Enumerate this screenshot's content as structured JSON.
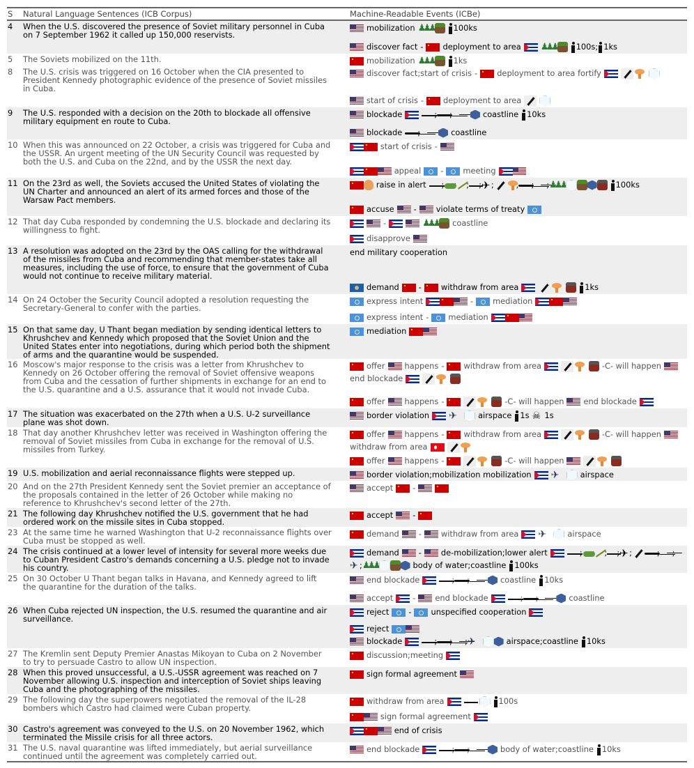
{
  "header": {
    "s": "S",
    "sentences": "Natural Language Sentences (ICB Corpus)",
    "events": "Machine-Readable Events (ICBe)"
  },
  "icon_legend": {
    "@us": "flag-united-states",
    "@su": "flag-soviet-union",
    "@cu": "flag-cuba",
    "@un": "flag-united-nations",
    "@tr": "flag-turkey",
    "@oas": "flag-oas",
    "@warsaw": "warsaw-pact-emblem",
    "@troops": "troops-icon",
    "@land": "land-icon",
    "@water": "water-icon",
    "@air": "airspace-icon",
    "@person": "person-icon",
    "@skull": "skull-icon",
    "@missile": "missile-icon",
    "@nuke": "nuclear-icon",
    "@tnt": "explosive-icon",
    "@ship": "ship-icon",
    "@sub": "submarine-icon",
    "@ship2": "warship-icon",
    "@tank": "tank-icon",
    "@artillery": "artillery-icon",
    "@plane": "plane-icon",
    "@jet": "jet-icon",
    "@recon": "recon-plane-icon"
  },
  "rows": [
    {
      "s": "4",
      "bold": true,
      "text": "When the U.S. discovered the presence of Soviet military personnel in Cuba\non 7 September 1962 it called up 150,000 reservists.",
      "groups": [
        [
          [
            "@us",
            "mobilization",
            "@troops",
            "@land",
            "@person",
            "100ks"
          ]
        ],
        [
          [
            "@us",
            "discover fact",
            "-",
            "@su",
            "deployment to area",
            "@cu",
            "@troops",
            "@land",
            "@person",
            "100s",
            ";",
            "@person",
            "1ks"
          ]
        ]
      ]
    },
    {
      "s": "5",
      "bold": false,
      "text": "The Soviets mobilized on the 11th.",
      "groups": [
        [
          [
            "@su",
            "mobilization",
            "@troops",
            "@land",
            "@person",
            "1ks"
          ]
        ]
      ]
    },
    {
      "s": "8",
      "bold": false,
      "text": "The U.S. crisis was triggered on 16 October when the CIA presented to\nPresident Kennedy photographic evidence of the presence of Soviet missiles\nin Cuba.",
      "groups": [
        [
          [
            "@us",
            "discover fact;start of crisis",
            "-",
            "@su",
            "deployment to area fortify",
            "@cu",
            "@missile",
            ";",
            "@nuke",
            "@air"
          ]
        ],
        [
          [
            "@us",
            "start of crisis",
            "-",
            "@su",
            "deployment to area",
            "@missile",
            "@air"
          ]
        ]
      ]
    },
    {
      "s": "9",
      "bold": true,
      "text": "The U.S. responded with a decision on the 20th to blockade all offensive\nmilitary equipment en route to Cuba.",
      "groups": [
        [
          [
            "@us",
            "blockade",
            "@cu",
            "@ship",
            ";",
            "@sub",
            ";",
            "@ship2",
            "@water",
            "coastline",
            "@person",
            "10ks"
          ]
        ],
        [
          [
            "@us",
            "blockade",
            "@sub",
            ";",
            "@ship2",
            "@water",
            "coastline"
          ]
        ]
      ]
    },
    {
      "s": "10",
      "bold": false,
      "text": "When this was announced on 22 October, a crisis was triggered for Cuba and\nthe USSR. An urgent meeting of the UN Security Council was requested by\nboth the U.S. and Cuba on the 22nd, and by the USSR the next day.",
      "groups": [
        [
          [
            "@cu",
            ";",
            "@su",
            "start of crisis",
            "-",
            "@us"
          ]
        ],
        [
          [
            "@cu",
            ";",
            "@su",
            ";",
            "@us",
            "appeal",
            "@un",
            "-",
            "@un",
            "meeting",
            "@cu",
            ";",
            "@us"
          ]
        ]
      ]
    },
    {
      "s": "11",
      "bold": true,
      "text": "On the 23rd as well, the Soviets accused the United States of violating the\nUN Charter and announced an alert of its armed forces and those of the\nWarsaw Pact members.",
      "groups": [
        [
          [
            "@su",
            ";",
            "@warsaw",
            "raise in alert",
            "@ship",
            ";",
            "@tank",
            ";",
            "@artillery",
            ";",
            "@plane",
            ";",
            "@jet",
            ";",
            "@missile",
            ";",
            "@nuke",
            ";",
            "@sub",
            ";",
            "@ship2",
            ";",
            "@troops",
            "@air",
            ";",
            "@land",
            ";",
            "@water",
            ";",
            "@tnt",
            "@person",
            "100ks"
          ]
        ],
        [
          [
            "@su",
            "accuse",
            "@us",
            "-",
            "@us",
            "violate terms of treaty",
            "@un"
          ]
        ]
      ]
    },
    {
      "s": "12",
      "bold": false,
      "text": "That day Cuba responded by condemning the U.S. blockade and declaring its\nwillingness to fight.",
      "groups": [
        [
          [
            "@cu",
            "@us",
            "-",
            "@cu",
            "@us",
            "@troops",
            "@land",
            "coastline"
          ]
        ],
        [
          [
            "@cu",
            "disapprove",
            "@us"
          ]
        ]
      ]
    },
    {
      "s": "13",
      "bold": true,
      "text": "A resolution was adopted on the 23rd by the OAS calling for the withdrawal\nof the missiles from Cuba and recommending that member-states take all\nmeasures, including the use of force, to ensure that the government of Cuba\nwould not continue to receive military material.",
      "groups": [
        [
          [
            "end military cooperation"
          ]
        ],
        [
          [
            "@oas",
            "demand",
            "@su",
            "-",
            "@su",
            "withdraw from area",
            "@cu",
            "@missile",
            ";",
            "@nuke",
            "@tnt",
            "@person",
            "1ks"
          ]
        ]
      ]
    },
    {
      "s": "14",
      "bold": false,
      "text": "On 24 October the Security Council adopted a resolution requesting the\nSecretary-General to confer with the parties.",
      "groups": [
        [
          [
            "@un",
            "express intent",
            "@cu",
            ";",
            "@su",
            ";",
            "@us",
            "-",
            "@un",
            "mediation",
            "@cu",
            ";",
            "@su",
            ";",
            "@us"
          ]
        ],
        [
          [
            "@un",
            "express intent",
            "-",
            "@un",
            "mediation",
            "@cu",
            ";",
            "@su",
            ";",
            "@us"
          ]
        ]
      ]
    },
    {
      "s": "15",
      "bold": true,
      "text": "On that same day, U Thant began mediation by sending identical letters to\nKhrushchev and Kennedy which proposed that the Soviet Union and the\nUnited States enter into negotiations, during which period both the shipment\nof arms and the quarantine would be suspended.",
      "groups": [
        [
          [
            "@un",
            "mediation",
            "@su",
            ";",
            "@us"
          ]
        ]
      ]
    },
    {
      "s": "16",
      "bold": false,
      "text": "Moscow's major response to the crisis was a letter from Khrushchev to\nKennedy on 26 October offering the removal of Soviet offensive weapons\nfrom Cuba and the cessation of further shipments in exchange for an end to\nthe U.S. quarantine and a U.S. assurance that it would not invade Cuba.",
      "groups": [
        [
          [
            "@su",
            "offer",
            "@us",
            "happens",
            "-",
            "@su",
            "withdraw from area",
            "@cu",
            "@missile",
            ";",
            "@nuke",
            "@tnt",
            "-C- will happen",
            "@us",
            "end blockade",
            "@cu",
            "@missile",
            ";",
            "@nuke",
            "@tnt"
          ]
        ],
        [
          [
            "@su",
            "offer",
            "@us",
            "happens",
            "-",
            "@su",
            "@missile",
            ";",
            "@nuke",
            "@tnt",
            "-C- will happen",
            "@us",
            "end blockade",
            "@cu"
          ]
        ]
      ]
    },
    {
      "s": "17",
      "bold": true,
      "text": "The situation was exacerbated on the 27th when a U.S. U-2 surveillance\nplane was shot down.",
      "groups": [
        [
          [
            "@us",
            "border violation",
            "@cu",
            "@recon",
            "@air",
            "airspace",
            "@person",
            "1s",
            "@skull",
            "1s"
          ]
        ]
      ]
    },
    {
      "s": "18",
      "bold": false,
      "text": "That day another Khrushchev letter was received in Washington offering the\nremoval of Soviet missiles from Cuba in exchange for the removal of U.S.\nmissiles from Turkey.",
      "groups": [
        [
          [
            "@su",
            "offer",
            "@us",
            "happens",
            "-",
            "@su",
            "withdraw from area",
            "@cu",
            "@missile",
            ";",
            "@nuke",
            "@tnt",
            "-C- will happen",
            "@us",
            "withdraw from area",
            "@tr",
            "@missile",
            ";",
            "@nuke"
          ]
        ],
        [
          [
            "@su",
            "offer",
            "@us",
            "happens",
            "-",
            "@su",
            "@missile",
            ";",
            "@nuke",
            "@tnt",
            "-C- will happen",
            "@us",
            "@missile",
            ";",
            "@nuke",
            "@tnt"
          ]
        ]
      ]
    },
    {
      "s": "19",
      "bold": true,
      "text": "U.S. mobilization and aerial reconnaissance flights were stepped up.",
      "groups": [
        [
          [
            "@us",
            "border violation;mobilization mobilization",
            "@cu",
            "@recon",
            "@air",
            "airspace"
          ]
        ]
      ]
    },
    {
      "s": "20",
      "bold": false,
      "text": "And on the 27th President Kennedy sent the Soviet premier an acceptance of\nthe proposals contained in the letter of 26 October while making no\nreference to Khrushchev's second letter of the 27th.",
      "groups": [
        [
          [
            "@us",
            "accept",
            "@su",
            "-",
            "@us",
            "@su"
          ]
        ]
      ]
    },
    {
      "s": "21",
      "bold": true,
      "text": "The following day Khrushchev notified the U.S. government that he had\nordered work on the missile sites in Cuba stopped.",
      "groups": [
        [
          [
            "@su",
            "accept",
            "@us",
            "-",
            "@su"
          ]
        ]
      ]
    },
    {
      "s": "23",
      "bold": false,
      "text": "At the same time he warned Washington that U-2 reconnaissance flights over\nCuba must be stopped as well.",
      "groups": [
        [
          [
            "@su",
            "demand",
            "@us",
            "-",
            "@us",
            "withdraw from area",
            "@cu",
            "@recon",
            "@air",
            "airspace"
          ]
        ]
      ]
    },
    {
      "s": "24",
      "bold": true,
      "text": "The crisis continued at a lower level of intensity for several more weeks due\nto Cuban President Castro's demands concerning a U.S. pledge not to invade\nhis country.",
      "groups": [
        [
          [
            "@cu",
            "demand",
            "@us",
            "-",
            "@us",
            "de-mobilization;lower alert",
            "@cu",
            "@ship",
            ";",
            "@tank",
            ";",
            "@artillery",
            ";",
            "@plane",
            ";",
            "@jet",
            ";",
            "@missile",
            ";",
            "@sub",
            ";",
            "@ship2",
            ";",
            "@recon",
            ";",
            "@troops",
            "@air",
            ";",
            "@land",
            ";",
            "@water",
            "body of water;coastline",
            "@person",
            "100ks"
          ]
        ]
      ]
    },
    {
      "s": "25",
      "bold": false,
      "text": "On 30 October U Thant began talks in Havana, and Kennedy agreed to lift\nthe quarantine for the duration of the talks.",
      "groups": [
        [
          [
            "@us",
            "end blockade",
            "@cu",
            "@ship",
            ";",
            "@sub",
            ";",
            "@ship2",
            "@water",
            "coastline",
            "@person",
            "10ks"
          ]
        ],
        [
          [
            "@us",
            "accept",
            "@cu",
            "-",
            "@us",
            "end blockade",
            "@cu",
            "@ship",
            ";",
            "@sub",
            ";",
            "@ship2",
            "@water",
            "coastline"
          ]
        ]
      ]
    },
    {
      "s": "26",
      "bold": true,
      "text": "When Cuba rejected UN inspection, the U.S. resumed the quarantine and air\nsurveillance.",
      "groups": [
        [
          [
            "@cu",
            "reject",
            "@un",
            "-",
            "@un",
            "unspecified cooperation",
            "@cu"
          ]
        ],
        [
          [
            "@cu",
            "reject",
            "@un",
            ";",
            "@us"
          ],
          [
            "@us",
            "blockade",
            "@cu",
            "@ship",
            ";",
            "@sub",
            ";",
            "@ship2",
            ";",
            "@recon",
            "@air",
            ";",
            "@water",
            "airspace;coastline",
            "@person",
            "10ks"
          ]
        ]
      ]
    },
    {
      "s": "27",
      "bold": false,
      "text": "The Kremlin sent Deputy Premier Anastas Mikoyan to Cuba on 2 November\nto try to persuade Castro to allow UN inspection.",
      "groups": [
        [
          [
            "@su",
            "discussion;meeting",
            "@cu"
          ]
        ]
      ]
    },
    {
      "s": "28",
      "bold": true,
      "text": "When this proved unsuccessful, a U.S.-USSR agreement was reached on 7\nNovember allowing U.S. inspection and interception of Soviet ships leaving\nCuba and the photographing of the missiles.",
      "groups": [
        [
          [
            "@su",
            "sign formal agreement",
            "@us"
          ]
        ]
      ]
    },
    {
      "s": "29",
      "bold": false,
      "text": "The following day the superpowers negotiated the removal of the IL-28\nbombers which Castro had claimed were Cuban property.",
      "groups": [
        [
          [
            "@su",
            "withdraw from area",
            "@cu",
            "@plane",
            "@air",
            "@person",
            "100s"
          ]
        ],
        [
          [
            "@su",
            ";",
            "@us",
            "sign formal agreement",
            "@cu"
          ]
        ]
      ]
    },
    {
      "s": "30",
      "bold": true,
      "text": "Castro's agreement was conveyed to the U.S. on 20 November 1962, which\nterminated the Missile crisis for all three actors.",
      "groups": [
        [
          [
            "@cu",
            ";",
            "@su",
            ";",
            "@us",
            "end of crisis"
          ]
        ]
      ]
    },
    {
      "s": "31",
      "bold": false,
      "text": "The U.S. naval quarantine was lifted immediately, but aerial surveillance\ncontinued until the agreement was completely carried out.",
      "groups": [
        [
          [
            "@us",
            "end blockade",
            "@cu",
            "@ship",
            ";",
            "@sub",
            ";",
            "@ship2",
            "@water",
            "body of water;coastline",
            "@person",
            "10ks"
          ]
        ]
      ]
    }
  ]
}
